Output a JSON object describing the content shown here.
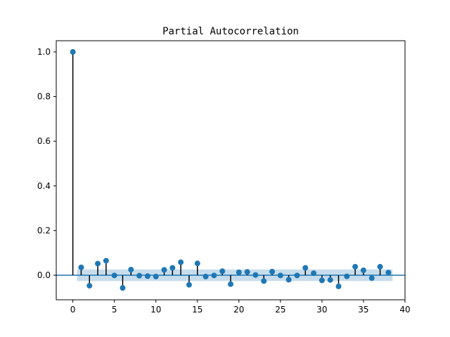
{
  "chart_data": {
    "type": "stem",
    "title": "Partial Autocorrelation",
    "xlabel": "",
    "ylabel": "",
    "xlim": [
      -2,
      40
    ],
    "ylim": [
      -0.11,
      1.05
    ],
    "x_ticks": [
      0,
      5,
      10,
      15,
      20,
      25,
      30,
      35,
      40
    ],
    "y_ticks": [
      0.0,
      0.2,
      0.4,
      0.6,
      0.8,
      1.0
    ],
    "x_tick_labels": [
      "0",
      "5",
      "10",
      "15",
      "20",
      "25",
      "30",
      "35",
      "40"
    ],
    "y_tick_labels": [
      "0.0",
      "0.2",
      "0.4",
      "0.6",
      "0.8",
      "1.0"
    ],
    "lags": [
      0,
      1,
      2,
      3,
      4,
      5,
      6,
      7,
      8,
      9,
      10,
      11,
      12,
      13,
      14,
      15,
      16,
      17,
      18,
      19,
      20,
      21,
      22,
      23,
      24,
      25,
      26,
      27,
      28,
      29,
      30,
      31,
      32,
      33,
      34,
      35,
      36,
      37,
      38
    ],
    "values": [
      1.0,
      0.035,
      -0.047,
      0.052,
      0.065,
      -0.001,
      -0.057,
      0.025,
      -0.002,
      -0.004,
      -0.006,
      0.024,
      0.033,
      0.058,
      -0.043,
      0.053,
      -0.006,
      -0.001,
      0.018,
      -0.04,
      0.013,
      0.015,
      0.001,
      -0.026,
      0.016,
      -0.001,
      -0.02,
      -0.001,
      0.033,
      0.009,
      -0.023,
      -0.021,
      -0.05,
      -0.005,
      0.038,
      0.022,
      -0.013,
      0.038,
      0.012
    ],
    "confidence_band": {
      "lower": -0.026,
      "upper": 0.026,
      "from_lag": 0.5,
      "to_lag": 38.5
    },
    "grid": false,
    "colors": {
      "marker": "#1f77b4",
      "stem": "#000000",
      "band": "#1f77b4",
      "zero_line": "#1f77b4",
      "axes": "#000000"
    }
  }
}
